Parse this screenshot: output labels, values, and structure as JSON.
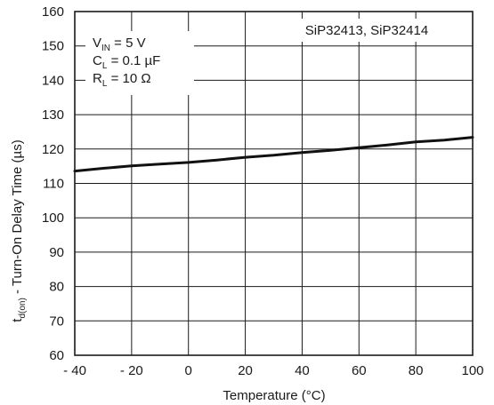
{
  "chart_data": {
    "type": "line",
    "xlabel": "Temperature (°C)",
    "ylabel": {
      "prefix": "t",
      "subscript": "d(on)",
      "suffix": " - Turn-On Delay Time (µs)"
    },
    "xlim": [
      -40,
      100
    ],
    "ylim": [
      60,
      160
    ],
    "x_ticks": [
      -40,
      -20,
      0,
      20,
      40,
      60,
      80,
      100
    ],
    "x_tick_labels": [
      "- 40",
      "- 20",
      "0",
      "20",
      "40",
      "60",
      "80",
      "100"
    ],
    "y_ticks": [
      60,
      70,
      80,
      90,
      100,
      110,
      120,
      130,
      140,
      150,
      160
    ],
    "y_tick_labels": [
      "60",
      "70",
      "80",
      "90",
      "100",
      "110",
      "120",
      "130",
      "140",
      "150",
      "160"
    ],
    "grid": true,
    "part_label": "SiP32413, SiP32414",
    "conditions": [
      {
        "main": "V",
        "sub": "IN",
        "rest": " = 5 V"
      },
      {
        "main": "C",
        "sub": "L",
        "rest": " = 0.1 µF"
      },
      {
        "main": "R",
        "sub": "L",
        "rest": " = 10 Ω"
      }
    ],
    "series": [
      {
        "x": [
          -40,
          -30,
          -20,
          -10,
          0,
          10,
          20,
          30,
          40,
          50,
          60,
          70,
          80,
          90,
          100
        ],
        "y": [
          113.6,
          114.4,
          115.1,
          115.6,
          116.1,
          116.8,
          117.6,
          118.2,
          119.0,
          119.6,
          120.4,
          121.2,
          122.1,
          122.6,
          123.4
        ]
      }
    ],
    "colors": {
      "line": "#111111",
      "grid": "#1a1a1a",
      "background": "#ffffff"
    }
  }
}
